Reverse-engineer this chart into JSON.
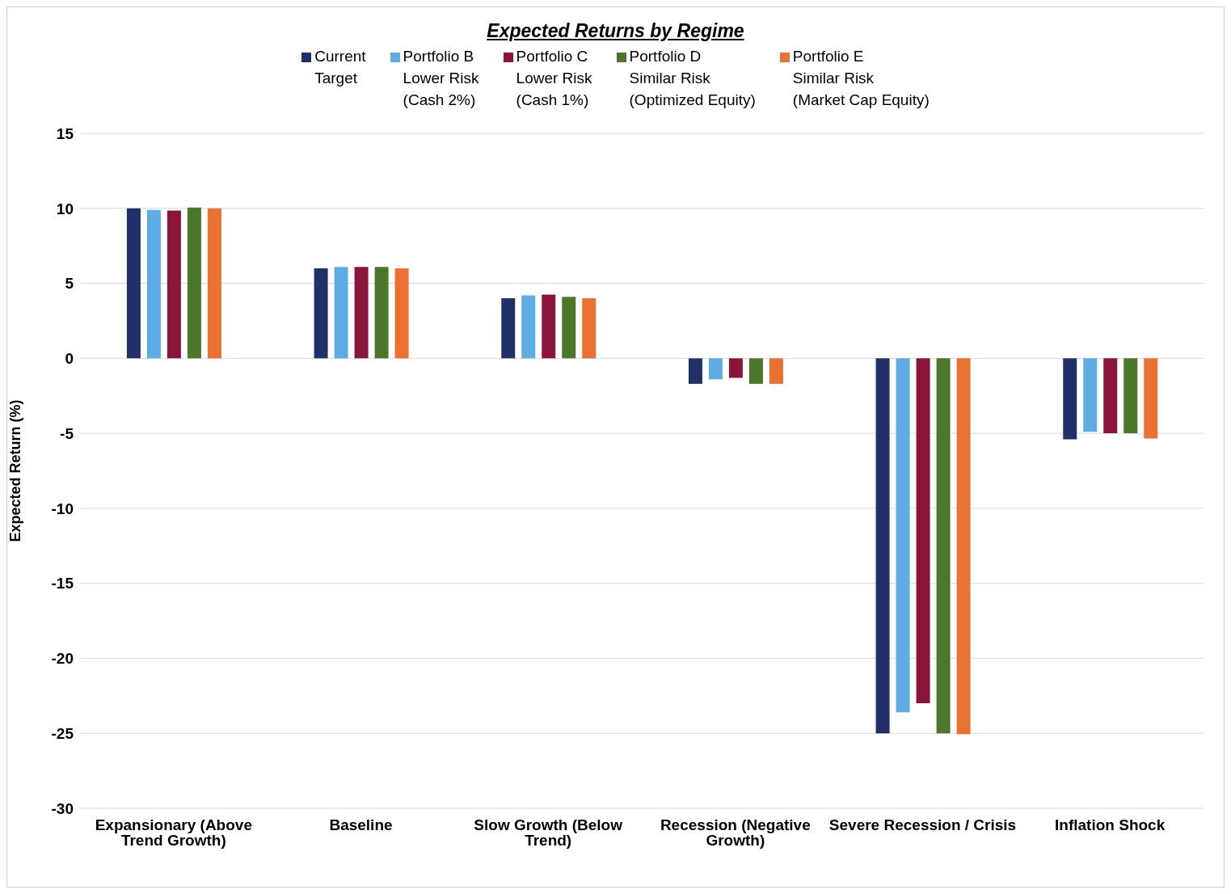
{
  "chart_data": {
    "type": "bar",
    "title": "Expected Returns by Regime",
    "ylabel": "Expected Return (%)",
    "categories": [
      "Expansionary (Above Trend Growth)",
      "Baseline",
      "Slow Growth (Below Trend)",
      "Recession (Negative Growth)",
      "Severe Recession / Crisis",
      "Inflation Shock"
    ],
    "series": [
      {
        "name": "Current\nTarget",
        "color": "#203068",
        "values": [
          10.0,
          6.0,
          4.0,
          -1.7,
          -25.0,
          -5.4
        ]
      },
      {
        "name": "Portfolio B\nLower Risk\n(Cash 2%)",
        "color": "#5dade2",
        "values": [
          9.9,
          6.1,
          4.2,
          -1.4,
          -23.6,
          -4.9
        ]
      },
      {
        "name": "Portfolio C\nLower Risk\n(Cash 1%)",
        "color": "#8b1538",
        "values": [
          9.85,
          6.1,
          4.25,
          -1.3,
          -23.0,
          -5.0
        ]
      },
      {
        "name": "Portfolio D\nSimilar Risk\n(Optimized Equity)",
        "color": "#4a7729",
        "values": [
          10.05,
          6.1,
          4.1,
          -1.7,
          -25.0,
          -5.0
        ]
      },
      {
        "name": "Portfolio E\nSimilar Risk\n(Market Cap Equity)",
        "color": "#e97132",
        "values": [
          10.0,
          6.0,
          4.0,
          -1.7,
          -25.05,
          -5.35
        ]
      }
    ],
    "ylim": [
      -30,
      15
    ],
    "yticks": [
      -30,
      -25,
      -20,
      -15,
      -10,
      -5,
      0,
      5,
      10,
      15
    ],
    "grid": "y",
    "legend": "top"
  }
}
